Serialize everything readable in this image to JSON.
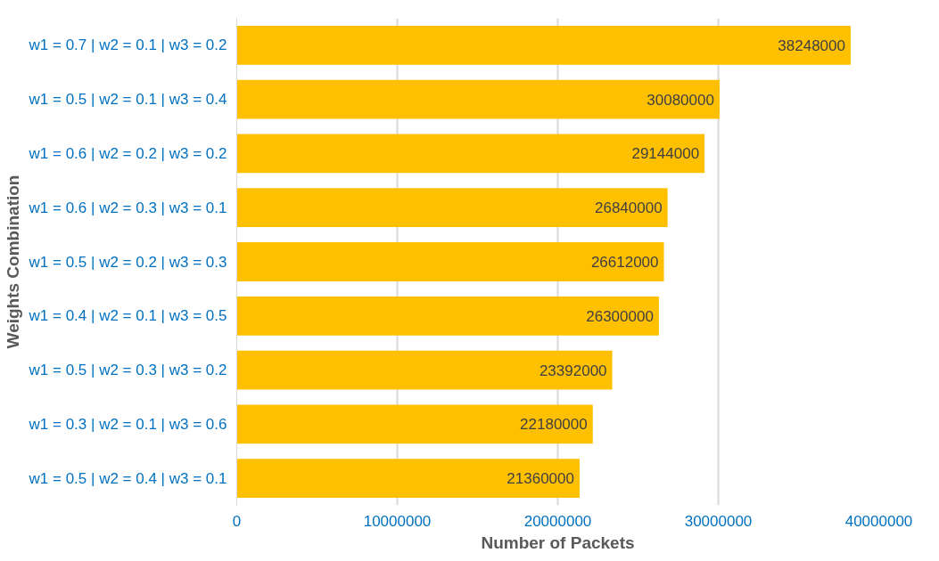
{
  "chart_data": {
    "type": "bar",
    "orientation": "horizontal",
    "xlabel": "Number of Packets",
    "ylabel": "Weights Combination",
    "categories": [
      "w1 = 0.7 | w2 = 0.1 | w3 = 0.2",
      "w1 = 0.5 | w2 = 0.1 | w3 = 0.4",
      "w1 = 0.6 | w2 = 0.2 | w3 = 0.2",
      "w1 = 0.6 | w2 = 0.3 | w3 = 0.1",
      "w1 = 0.5 | w2 = 0.2 | w3 = 0.3",
      "w1 = 0.4 | w2 = 0.1 | w3 = 0.5",
      "w1 = 0.5 | w2 = 0.3 | w3 = 0.2",
      "w1 = 0.3 | w2 = 0.1 | w3 = 0.6",
      "w1 = 0.5 | w2 = 0.4 | w3 = 0.1"
    ],
    "values": [
      38248000,
      30080000,
      29144000,
      26840000,
      26612000,
      26300000,
      23392000,
      22180000,
      21360000
    ],
    "color": "#ffc000",
    "data_labels": true,
    "grid": "x",
    "xlim": [
      0,
      40000000
    ],
    "xticks": [
      0,
      10000000,
      20000000,
      30000000,
      40000000
    ]
  }
}
